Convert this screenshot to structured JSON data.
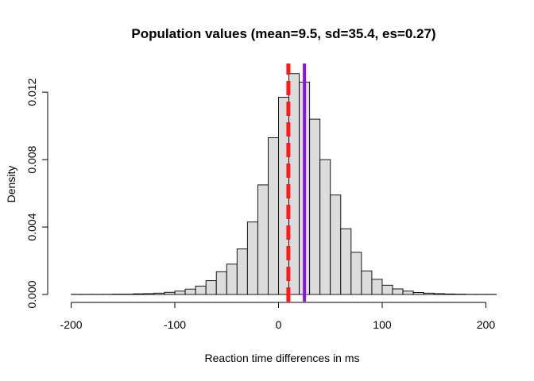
{
  "chart_data": {
    "type": "bar",
    "subtype": "histogram",
    "title": "Population values (mean=9.5, sd=35.4, es=0.27)",
    "xlabel": "Reaction time differences in ms",
    "ylabel": "Density",
    "xlim": [
      -215,
      215
    ],
    "ylim": [
      0,
      0.0137
    ],
    "x_ticks": [
      -200,
      -100,
      0,
      100,
      200
    ],
    "x_tick_labels": [
      "-200",
      "-100",
      "0",
      "100",
      "200"
    ],
    "y_ticks": [
      0.0,
      0.004,
      0.008,
      0.012
    ],
    "y_tick_labels": [
      "0.000",
      "0.004",
      "0.008",
      "0.012"
    ],
    "bin_width": 10,
    "bins": [
      {
        "x0": -200,
        "x1": -190,
        "density": 1e-05
      },
      {
        "x0": -190,
        "x1": -180,
        "density": 1e-05
      },
      {
        "x0": -180,
        "x1": -170,
        "density": 1e-05
      },
      {
        "x0": -170,
        "x1": -160,
        "density": 1e-05
      },
      {
        "x0": -160,
        "x1": -150,
        "density": 2e-05
      },
      {
        "x0": -150,
        "x1": -140,
        "density": 2e-05
      },
      {
        "x0": -140,
        "x1": -130,
        "density": 4e-05
      },
      {
        "x0": -130,
        "x1": -120,
        "density": 5e-05
      },
      {
        "x0": -120,
        "x1": -110,
        "density": 8e-05
      },
      {
        "x0": -110,
        "x1": -100,
        "density": 0.00013
      },
      {
        "x0": -100,
        "x1": -90,
        "density": 0.0002
      },
      {
        "x0": -90,
        "x1": -80,
        "density": 0.00032
      },
      {
        "x0": -80,
        "x1": -70,
        "density": 0.0005
      },
      {
        "x0": -70,
        "x1": -60,
        "density": 0.00082
      },
      {
        "x0": -60,
        "x1": -50,
        "density": 0.00135
      },
      {
        "x0": -50,
        "x1": -40,
        "density": 0.0018
      },
      {
        "x0": -40,
        "x1": -30,
        "density": 0.0027
      },
      {
        "x0": -30,
        "x1": -20,
        "density": 0.0043
      },
      {
        "x0": -20,
        "x1": -10,
        "density": 0.0065
      },
      {
        "x0": -10,
        "x1": 0,
        "density": 0.0093
      },
      {
        "x0": 0,
        "x1": 10,
        "density": 0.0117
      },
      {
        "x0": 10,
        "x1": 20,
        "density": 0.0131
      },
      {
        "x0": 20,
        "x1": 30,
        "density": 0.0126
      },
      {
        "x0": 30,
        "x1": 40,
        "density": 0.0104
      },
      {
        "x0": 40,
        "x1": 50,
        "density": 0.008
      },
      {
        "x0": 50,
        "x1": 60,
        "density": 0.0059
      },
      {
        "x0": 60,
        "x1": 70,
        "density": 0.0039
      },
      {
        "x0": 70,
        "x1": 80,
        "density": 0.0025
      },
      {
        "x0": 80,
        "x1": 90,
        "density": 0.0014
      },
      {
        "x0": 90,
        "x1": 100,
        "density": 0.0009
      },
      {
        "x0": 100,
        "x1": 110,
        "density": 0.00055
      },
      {
        "x0": 110,
        "x1": 120,
        "density": 0.00033
      },
      {
        "x0": 120,
        "x1": 130,
        "density": 0.0002
      },
      {
        "x0": 130,
        "x1": 140,
        "density": 0.00012
      },
      {
        "x0": 140,
        "x1": 150,
        "density": 8e-05
      },
      {
        "x0": 150,
        "x1": 160,
        "density": 5e-05
      },
      {
        "x0": 160,
        "x1": 170,
        "density": 3e-05
      },
      {
        "x0": 170,
        "x1": 180,
        "density": 2e-05
      },
      {
        "x0": 180,
        "x1": 190,
        "density": 1e-05
      },
      {
        "x0": 190,
        "x1": 200,
        "density": 1e-05
      },
      {
        "x0": 200,
        "x1": 210,
        "density": 1e-05
      }
    ],
    "vlines": [
      {
        "x": 9.5,
        "color": "#ff1a1a",
        "style": "dashed"
      },
      {
        "x": 25,
        "color": "#8a14e8",
        "style": "solid"
      }
    ],
    "bar_fill": "#dcdcdc",
    "grid": false,
    "legend": "none"
  }
}
